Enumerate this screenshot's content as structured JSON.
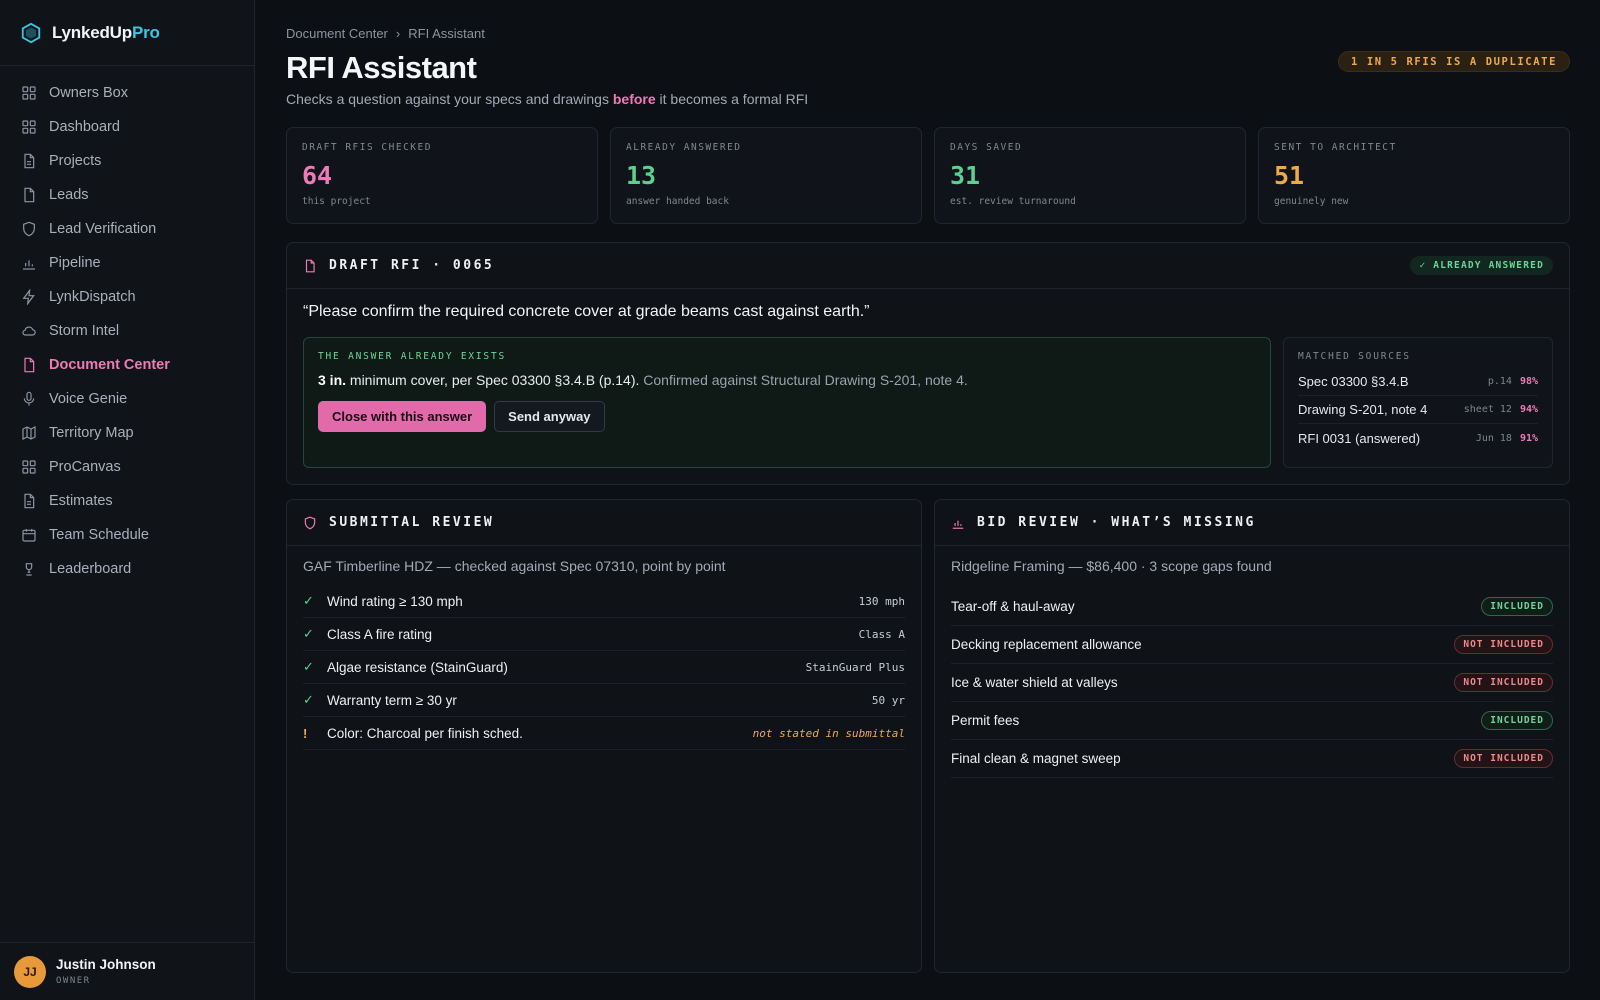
{
  "brand": {
    "name": "LynkedUp",
    "suffix": "Pro"
  },
  "nav": [
    {
      "label": "Owners Box",
      "icon": "grid-icon"
    },
    {
      "label": "Dashboard",
      "icon": "grid-icon"
    },
    {
      "label": "Projects",
      "icon": "document-icon"
    },
    {
      "label": "Leads",
      "icon": "file-icon"
    },
    {
      "label": "Lead Verification",
      "icon": "shield-icon"
    },
    {
      "label": "Pipeline",
      "icon": "bar-chart-icon"
    },
    {
      "label": "LynkDispatch",
      "icon": "bolt-icon"
    },
    {
      "label": "Storm Intel",
      "icon": "cloud-icon"
    },
    {
      "label": "Document Center",
      "icon": "file-icon",
      "active": true
    },
    {
      "label": "Voice Genie",
      "icon": "microphone-icon"
    },
    {
      "label": "Territory Map",
      "icon": "map-icon"
    },
    {
      "label": "ProCanvas",
      "icon": "grid-icon"
    },
    {
      "label": "Estimates",
      "icon": "document-icon"
    },
    {
      "label": "Team Schedule",
      "icon": "calendar-icon"
    },
    {
      "label": "Leaderboard",
      "icon": "trophy-icon"
    }
  ],
  "user": {
    "initials": "JJ",
    "name": "Justin Johnson",
    "role": "OWNER"
  },
  "breadcrumb": {
    "parent": "Document Center",
    "sep": "›",
    "current": "RFI Assistant"
  },
  "header": {
    "title": "RFI Assistant",
    "subtitle_pre": "Checks a question against your specs and drawings",
    "subtitle_hl": "before",
    "subtitle_post": "it becomes a formal RFI",
    "badge": "1 IN 5 RFIS IS A DUPLICATE"
  },
  "stats": [
    {
      "label": "DRAFT RFIS CHECKED",
      "value": "64",
      "sub": "this project",
      "color": "#ee7ab8"
    },
    {
      "label": "ALREADY ANSWERED",
      "value": "13",
      "sub": "answer handed back",
      "color": "#5cd08f"
    },
    {
      "label": "DAYS SAVED",
      "value": "31",
      "sub": "est. review turnaround",
      "color": "#5cd08f"
    },
    {
      "label": "SENT TO ARCHITECT",
      "value": "51",
      "sub": "genuinely new",
      "color": "#f0a94a"
    }
  ],
  "rfi": {
    "title": "DRAFT RFI · 0065",
    "status": "✓ ALREADY ANSWERED",
    "question": "“Please confirm the required concrete cover at grade beams cast against earth.”",
    "answer_label": "THE ANSWER ALREADY EXISTS",
    "answer_bold": "3 in.",
    "answer_main": "minimum cover, per Spec 03300 §3.4.B (p.14).",
    "answer_conf": "Confirmed against Structural Drawing S-201, note 4.",
    "primary_button": "Close with this answer",
    "secondary_button": "Send anyway",
    "sources_label": "MATCHED SOURCES",
    "sources": [
      {
        "name": "Spec 03300 §3.4.B",
        "loc": "p.14",
        "pct": "98%"
      },
      {
        "name": "Drawing S-201, note 4",
        "loc": "sheet 12",
        "pct": "94%"
      },
      {
        "name": "RFI 0031 (answered)",
        "loc": "Jun 18",
        "pct": "91%"
      }
    ]
  },
  "submittal": {
    "title": "SUBMITTAL REVIEW",
    "summary": "GAF Timberline HDZ — checked against Spec 07310, point by point",
    "items": [
      {
        "mark": "✓",
        "text": "Wind rating ≥ 130 mph",
        "value": "130 mph",
        "warn": false
      },
      {
        "mark": "✓",
        "text": "Class A fire rating",
        "value": "Class A",
        "warn": false
      },
      {
        "mark": "✓",
        "text": "Algae resistance (StainGuard)",
        "value": "StainGuard Plus",
        "warn": false
      },
      {
        "mark": "✓",
        "text": "Warranty term ≥ 30 yr",
        "value": "50 yr",
        "warn": false
      },
      {
        "mark": "!",
        "text": "Color: Charcoal per finish sched.",
        "value": "not stated in submittal",
        "warn": true
      }
    ]
  },
  "bid": {
    "title": "BID REVIEW · WHAT’S MISSING",
    "summary": "Ridgeline Framing — $86,400 · 3 scope gaps found",
    "items": [
      {
        "text": "Tear-off & haul-away",
        "status": "INCLUDED",
        "included": true
      },
      {
        "text": "Decking replacement allowance",
        "status": "NOT INCLUDED",
        "included": false
      },
      {
        "text": "Ice & water shield at valleys",
        "status": "NOT INCLUDED",
        "included": false
      },
      {
        "text": "Permit fees",
        "status": "INCLUDED",
        "included": true
      },
      {
        "text": "Final clean & magnet sweep",
        "status": "NOT INCLUDED",
        "included": false
      }
    ]
  },
  "colors": {
    "accent": "#ee7ab8",
    "success": "#5cd08f",
    "warning": "#f0a94a",
    "danger": "#ef8a8a",
    "brand": "#38c6e0"
  }
}
